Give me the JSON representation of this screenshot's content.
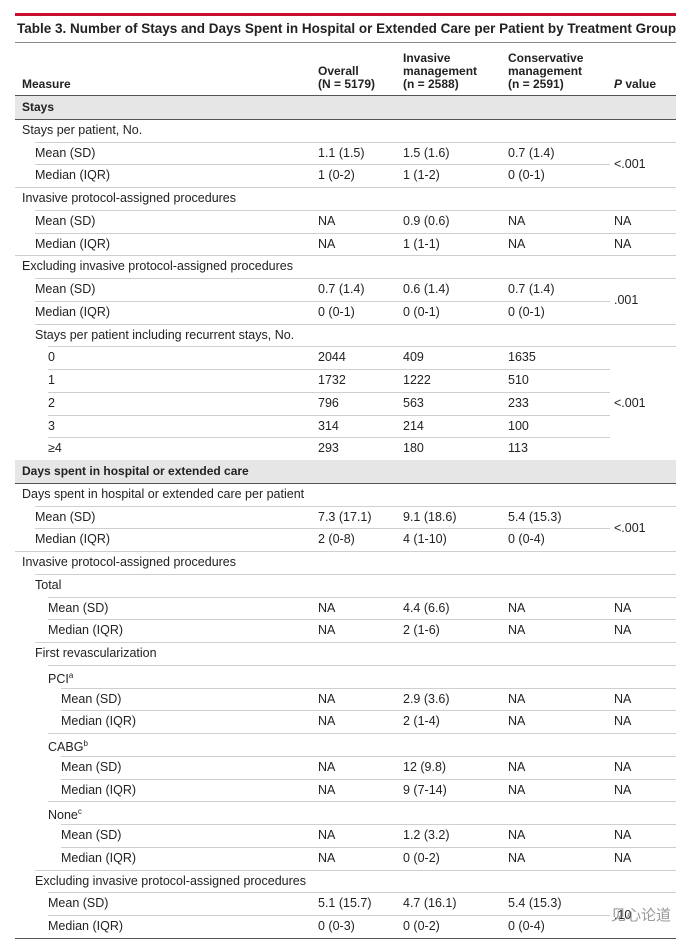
{
  "title": "Table 3. Number of Stays and Days Spent in Hospital or Extended Care per Patient by Treatment Group",
  "table": {
    "columns": [
      [
        "Measure"
      ],
      [
        "Overall",
        "(N = 5179)"
      ],
      [
        "Invasive",
        "management",
        "(n = 2588)"
      ],
      [
        "Conservative",
        "management",
        "(n = 2591)"
      ],
      [
        "P",
        "value"
      ]
    ],
    "rows": [
      {
        "label": "Stays",
        "section": true
      },
      {
        "label": "Stays per patient, No."
      },
      {
        "label": "Mean (SD)",
        "values": [
          "1.1 (1.5)",
          "1.5 (1.6)",
          "0.7 (1.4)"
        ],
        "p": "<.001"
      },
      {
        "label": "Median (IQR)",
        "values": [
          "1 (0-2)",
          "1 (1-2)",
          "0 (0-1)"
        ]
      },
      {
        "label": "Invasive protocol-assigned procedures"
      },
      {
        "label": "Mean (SD)",
        "values": [
          "NA",
          "0.9 (0.6)",
          "NA"
        ],
        "p": "NA"
      },
      {
        "label": "Median (IQR)",
        "values": [
          "NA",
          "1 (1-1)",
          "NA"
        ],
        "p": "NA"
      },
      {
        "label": "Excluding invasive protocol-assigned procedures"
      },
      {
        "label": "Mean (SD)",
        "values": [
          "0.7 (1.4)",
          "0.6 (1.4)",
          "0.7 (1.4)"
        ],
        "p": ".001"
      },
      {
        "label": "Median (IQR)",
        "values": [
          "0 (0-1)",
          "0 (0-1)",
          "0 (0-1)"
        ]
      },
      {
        "label": "Stays per patient including recurrent stays, No."
      },
      {
        "label": "0",
        "values": [
          "2044",
          "409",
          "1635"
        ],
        "p": "<.001"
      },
      {
        "label": "1",
        "values": [
          "1732",
          "1222",
          "510"
        ]
      },
      {
        "label": "2",
        "values": [
          "796",
          "563",
          "233"
        ]
      },
      {
        "label": "3",
        "values": [
          "314",
          "214",
          "100"
        ]
      },
      {
        "label": "≥4",
        "values": [
          "293",
          "180",
          "113"
        ]
      },
      {
        "label": "Days spent in hospital or extended care",
        "section": true
      },
      {
        "label": "Days spent in hospital or extended care per patient"
      },
      {
        "label": "Mean (SD)",
        "values": [
          "7.3 (17.1)",
          "9.1 (18.6)",
          "5.4 (15.3)"
        ],
        "p": "<.001"
      },
      {
        "label": "Median (IQR)",
        "values": [
          "2 (0-8)",
          "4 (1-10)",
          "0 (0-4)"
        ]
      },
      {
        "label": "Invasive protocol-assigned procedures"
      },
      {
        "label": "Total"
      },
      {
        "label": "Mean (SD)",
        "values": [
          "NA",
          "4.4 (6.6)",
          "NA"
        ],
        "p": "NA"
      },
      {
        "label": "Median (IQR)",
        "values": [
          "NA",
          "2 (1-6)",
          "NA"
        ],
        "p": "NA"
      },
      {
        "label": "First revascularization"
      },
      {
        "label": "PCI",
        "note": "a"
      },
      {
        "label": "Mean (SD)",
        "values": [
          "NA",
          "2.9 (3.6)",
          "NA"
        ],
        "p": "NA"
      },
      {
        "label": "Median (IQR)",
        "values": [
          "NA",
          "2 (1-4)",
          "NA"
        ],
        "p": "NA"
      },
      {
        "label": "CABG",
        "note": "b"
      },
      {
        "label": "Mean (SD)",
        "values": [
          "NA",
          "12 (9.8)",
          "NA"
        ],
        "p": "NA"
      },
      {
        "label": "Median (IQR)",
        "values": [
          "NA",
          "9 (7-14)",
          "NA"
        ],
        "p": "NA"
      },
      {
        "label": "None",
        "note": "c"
      },
      {
        "label": "Mean (SD)",
        "values": [
          "NA",
          "1.2 (3.2)",
          "NA"
        ],
        "p": "NA"
      },
      {
        "label": "Median (IQR)",
        "values": [
          "NA",
          "0 (0-2)",
          "NA"
        ],
        "p": "NA"
      },
      {
        "label": "Excluding invasive protocol-assigned procedures"
      },
      {
        "label": "Mean (SD)",
        "values": [
          "5.1 (15.7)",
          "4.7 (16.1)",
          "5.4 (15.3)"
        ],
        "p": ".10"
      },
      {
        "label": "Median (IQR)",
        "values": [
          "0 (0-3)",
          "0 (0-2)",
          "0 (0-4)"
        ]
      }
    ]
  },
  "watermark": "见心论道"
}
